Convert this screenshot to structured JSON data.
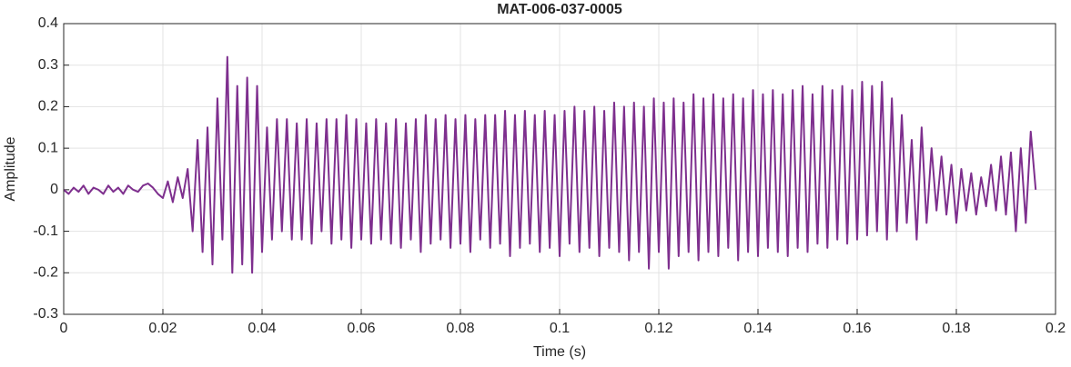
{
  "chart_data": {
    "type": "line",
    "title": "MAT-006-037-0005",
    "xlabel": "Time (s)",
    "ylabel": "Amplitude",
    "xlim": [
      0,
      0.2
    ],
    "ylim": [
      -0.3,
      0.4
    ],
    "xticks": [
      0,
      0.02,
      0.04,
      0.06,
      0.08,
      0.1,
      0.12,
      0.14,
      0.16,
      0.18,
      0.2
    ],
    "yticks": [
      -0.3,
      -0.2,
      -0.1,
      0,
      0.1,
      0.2,
      0.3,
      0.4
    ],
    "grid": true,
    "x": [
      0,
      0.001,
      0.002,
      0.003,
      0.004,
      0.005,
      0.006,
      0.007,
      0.008,
      0.009,
      0.01,
      0.011,
      0.012,
      0.013,
      0.014,
      0.015,
      0.016,
      0.017,
      0.018,
      0.019,
      0.02,
      0.021,
      0.022,
      0.023,
      0.024,
      0.025,
      0.026,
      0.027,
      0.028,
      0.029,
      0.03,
      0.031,
      0.032,
      0.033,
      0.034,
      0.035,
      0.036,
      0.037,
      0.038,
      0.039,
      0.04,
      0.041,
      0.042,
      0.043,
      0.044,
      0.045,
      0.046,
      0.047,
      0.048,
      0.049,
      0.05,
      0.051,
      0.052,
      0.053,
      0.054,
      0.055,
      0.056,
      0.057,
      0.058,
      0.059,
      0.06,
      0.061,
      0.062,
      0.063,
      0.064,
      0.065,
      0.066,
      0.067,
      0.068,
      0.069,
      0.07,
      0.071,
      0.072,
      0.073,
      0.074,
      0.075,
      0.076,
      0.077,
      0.078,
      0.079,
      0.08,
      0.081,
      0.082,
      0.083,
      0.084,
      0.085,
      0.086,
      0.087,
      0.088,
      0.089,
      0.09,
      0.091,
      0.092,
      0.093,
      0.094,
      0.095,
      0.096,
      0.097,
      0.098,
      0.099,
      0.1,
      0.101,
      0.102,
      0.103,
      0.104,
      0.105,
      0.106,
      0.107,
      0.108,
      0.109,
      0.11,
      0.111,
      0.112,
      0.113,
      0.114,
      0.115,
      0.116,
      0.117,
      0.118,
      0.119,
      0.12,
      0.121,
      0.122,
      0.123,
      0.124,
      0.125,
      0.126,
      0.127,
      0.128,
      0.129,
      0.13,
      0.131,
      0.132,
      0.133,
      0.134,
      0.135,
      0.136,
      0.137,
      0.138,
      0.139,
      0.14,
      0.141,
      0.142,
      0.143,
      0.144,
      0.145,
      0.146,
      0.147,
      0.148,
      0.149,
      0.15,
      0.151,
      0.152,
      0.153,
      0.154,
      0.155,
      0.156,
      0.157,
      0.158,
      0.159,
      0.16,
      0.161,
      0.162,
      0.163,
      0.164,
      0.165,
      0.166,
      0.167,
      0.168,
      0.169,
      0.17,
      0.171,
      0.172,
      0.173,
      0.174,
      0.175,
      0.176,
      0.177,
      0.178,
      0.179,
      0.18,
      0.181,
      0.182,
      0.183,
      0.184,
      0.185,
      0.186,
      0.187,
      0.188,
      0.189,
      0.19,
      0.191,
      0.192,
      0.193,
      0.194,
      0.195,
      0.196
    ],
    "series": [
      {
        "color": "#7e2f8e",
        "values": [
          0,
          -0.01,
          0.005,
          -0.005,
          0.01,
          -0.01,
          0.005,
          0,
          -0.01,
          0.01,
          -0.005,
          0.005,
          -0.01,
          0.01,
          0,
          -0.005,
          0.01,
          0.015,
          0.005,
          -0.01,
          -0.02,
          0.02,
          -0.03,
          0.03,
          -0.02,
          0.05,
          -0.1,
          0.12,
          -0.15,
          0.15,
          -0.18,
          0.22,
          -0.12,
          0.32,
          -0.2,
          0.25,
          -0.18,
          0.27,
          -0.2,
          0.25,
          -0.15,
          0.15,
          -0.12,
          0.17,
          -0.1,
          0.17,
          -0.12,
          0.16,
          -0.12,
          0.17,
          -0.13,
          0.16,
          -0.1,
          0.17,
          -0.13,
          0.17,
          -0.12,
          0.18,
          -0.14,
          0.17,
          -0.12,
          0.16,
          -0.13,
          0.17,
          -0.12,
          0.16,
          -0.13,
          0.17,
          -0.14,
          0.16,
          -0.12,
          0.17,
          -0.15,
          0.18,
          -0.13,
          0.17,
          -0.12,
          0.18,
          -0.14,
          0.17,
          -0.13,
          0.18,
          -0.15,
          0.17,
          -0.12,
          0.18,
          -0.14,
          0.18,
          -0.13,
          0.19,
          -0.16,
          0.18,
          -0.14,
          0.19,
          -0.13,
          0.18,
          -0.15,
          0.19,
          -0.14,
          0.18,
          -0.16,
          0.19,
          -0.13,
          0.2,
          -0.15,
          0.19,
          -0.14,
          0.2,
          -0.16,
          0.19,
          -0.14,
          0.21,
          -0.15,
          0.2,
          -0.17,
          0.21,
          -0.15,
          0.2,
          -0.19,
          0.22,
          -0.15,
          0.21,
          -0.19,
          0.22,
          -0.16,
          0.21,
          -0.15,
          0.23,
          -0.17,
          0.22,
          -0.15,
          0.23,
          -0.16,
          0.22,
          -0.14,
          0.23,
          -0.17,
          0.22,
          -0.15,
          0.24,
          -0.16,
          0.23,
          -0.14,
          0.24,
          -0.15,
          0.23,
          -0.16,
          0.24,
          -0.14,
          0.25,
          -0.15,
          0.23,
          -0.13,
          0.25,
          -0.14,
          0.24,
          -0.12,
          0.25,
          -0.13,
          0.24,
          -0.12,
          0.26,
          -0.11,
          0.25,
          -0.1,
          0.26,
          -0.12,
          0.22,
          -0.1,
          0.18,
          -0.08,
          0.12,
          -0.12,
          0.15,
          -0.08,
          0.1,
          -0.05,
          0.08,
          -0.06,
          0.06,
          -0.08,
          0.05,
          -0.05,
          0.04,
          -0.06,
          0.03,
          -0.04,
          0.06,
          -0.05,
          0.08,
          -0.06,
          0.09,
          -0.1,
          0.1,
          -0.08,
          0.14,
          0.0
        ]
      }
    ]
  }
}
